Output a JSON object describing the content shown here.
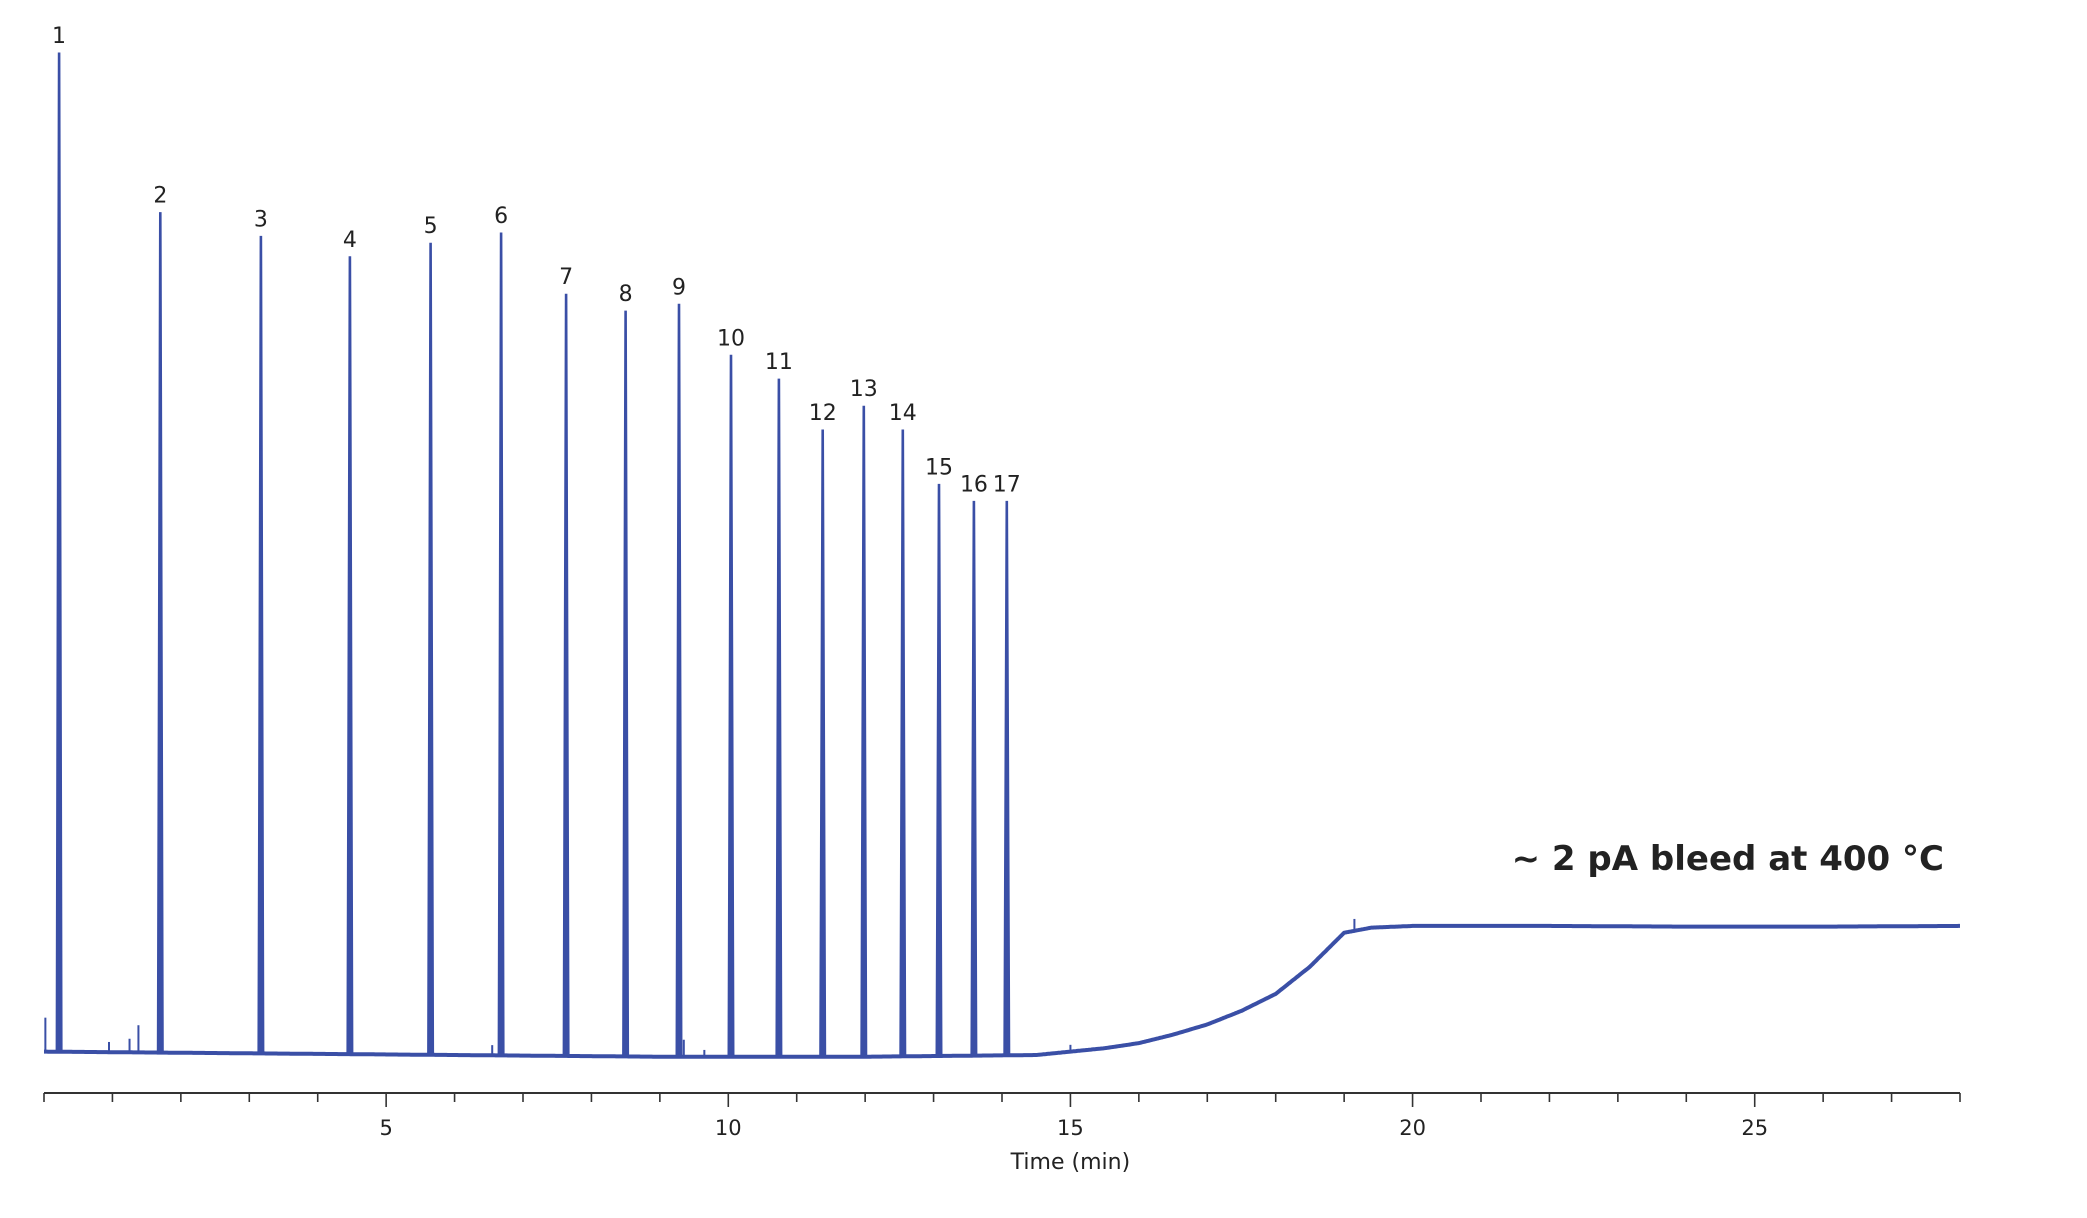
{
  "chart_data": {
    "type": "line",
    "title": "",
    "xlabel": "Time (min)",
    "ylabel": "",
    "xlim": [
      0,
      28.0
    ],
    "ylim": [
      -0.5,
      30.0
    ],
    "grid": false,
    "legend": "none",
    "x_major_ticks": [
      5,
      10,
      15,
      20,
      25
    ],
    "x_minor_step": 1,
    "series_color": "#3a4fa6",
    "annotation": {
      "text": "~ 2 pA bleed at 400 °C"
    },
    "peaks": [
      {
        "label": "1",
        "time": 0.22,
        "height": 29.5
      },
      {
        "label": "2",
        "time": 1.7,
        "height": 24.8
      },
      {
        "label": "3",
        "time": 3.17,
        "height": 24.1
      },
      {
        "label": "4",
        "time": 4.47,
        "height": 23.5
      },
      {
        "label": "5",
        "time": 5.65,
        "height": 23.9
      },
      {
        "label": "6",
        "time": 6.68,
        "height": 24.2
      },
      {
        "label": "7",
        "time": 7.63,
        "height": 22.4
      },
      {
        "label": "8",
        "time": 8.5,
        "height": 21.9
      },
      {
        "label": "9",
        "time": 9.28,
        "height": 22.1
      },
      {
        "label": "10",
        "time": 10.04,
        "height": 20.6
      },
      {
        "label": "11",
        "time": 10.74,
        "height": 19.9
      },
      {
        "label": "12",
        "time": 11.38,
        "height": 18.4
      },
      {
        "label": "13",
        "time": 11.98,
        "height": 19.1
      },
      {
        "label": "14",
        "time": 12.55,
        "height": 18.4
      },
      {
        "label": "15",
        "time": 13.08,
        "height": 16.8
      },
      {
        "label": "16",
        "time": 13.59,
        "height": 16.3
      },
      {
        "label": "17",
        "time": 14.07,
        "height": 16.3
      }
    ],
    "baseline": [
      {
        "time": 0.0,
        "value": 0.1
      },
      {
        "time": 3.0,
        "value": 0.05
      },
      {
        "time": 6.0,
        "value": 0.0
      },
      {
        "time": 9.0,
        "value": -0.05
      },
      {
        "time": 12.0,
        "value": -0.05
      },
      {
        "time": 14.5,
        "value": 0.0
      },
      {
        "time": 15.5,
        "value": 0.2
      },
      {
        "time": 16.0,
        "value": 0.35
      },
      {
        "time": 16.5,
        "value": 0.6
      },
      {
        "time": 17.0,
        "value": 0.9
      },
      {
        "time": 17.5,
        "value": 1.3
      },
      {
        "time": 18.0,
        "value": 1.8
      },
      {
        "time": 18.5,
        "value": 2.6
      },
      {
        "time": 19.0,
        "value": 3.6
      },
      {
        "time": 19.4,
        "value": 3.75
      },
      {
        "time": 20.0,
        "value": 3.8
      },
      {
        "time": 22.0,
        "value": 3.8
      },
      {
        "time": 24.0,
        "value": 3.78
      },
      {
        "time": 26.0,
        "value": 3.78
      },
      {
        "time": 28.0,
        "value": 3.8
      }
    ],
    "minor_spikes": [
      {
        "time": 0.02,
        "height": 1.0
      },
      {
        "time": 0.95,
        "height": 0.3
      },
      {
        "time": 1.25,
        "height": 0.4
      },
      {
        "time": 1.38,
        "height": 0.8
      },
      {
        "time": 6.55,
        "height": 0.3
      },
      {
        "time": 9.35,
        "height": 0.5
      },
      {
        "time": 9.65,
        "height": 0.2
      },
      {
        "time": 15.0,
        "height": 0.2
      },
      {
        "time": 19.15,
        "height": 0.35
      }
    ]
  }
}
